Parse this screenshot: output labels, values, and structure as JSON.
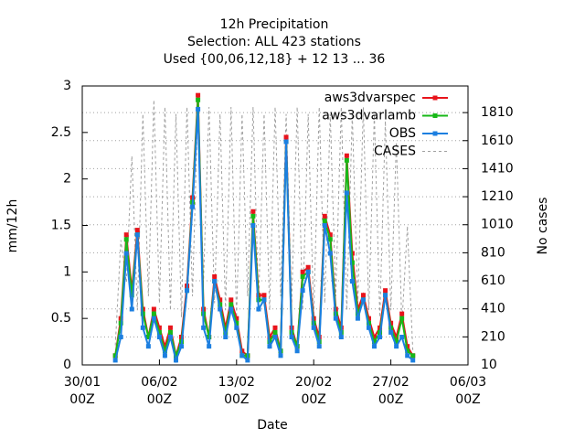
{
  "chart_data": {
    "type": "line",
    "title": [
      "12h Precipitation",
      "Selection: ALL    423 stations",
      "Used {00,06,12,18} + 12 13 ... 36"
    ],
    "x_label": "Date",
    "y_label": "mm/12h",
    "y2_label": "No cases",
    "x": [
      "02/02 00Z",
      "02/02 12Z",
      "03/02 00Z",
      "03/02 12Z",
      "04/02 00Z",
      "04/02 12Z",
      "05/02 00Z",
      "05/02 12Z",
      "06/02 00Z",
      "06/02 12Z",
      "07/02 00Z",
      "07/02 12Z",
      "08/02 00Z",
      "08/02 12Z",
      "09/02 00Z",
      "09/02 12Z",
      "10/02 00Z",
      "10/02 12Z",
      "11/02 00Z",
      "11/02 12Z",
      "12/02 00Z",
      "12/02 12Z",
      "13/02 00Z",
      "13/02 12Z",
      "14/02 00Z",
      "14/02 12Z",
      "15/02 00Z",
      "15/02 12Z",
      "16/02 00Z",
      "16/02 12Z",
      "17/02 00Z",
      "17/02 12Z",
      "18/02 00Z",
      "18/02 12Z",
      "19/02 00Z",
      "19/02 12Z",
      "20/02 00Z",
      "20/02 12Z",
      "21/02 00Z",
      "21/02 12Z",
      "22/02 00Z",
      "22/02 12Z",
      "23/02 00Z",
      "23/02 12Z",
      "24/02 00Z",
      "24/02 12Z",
      "25/02 00Z",
      "25/02 12Z",
      "26/02 00Z",
      "26/02 12Z",
      "27/02 00Z",
      "27/02 12Z",
      "28/02 00Z",
      "28/02 12Z",
      "01/03 00Z"
    ],
    "xlim": [
      "30/01 00Z",
      "06/03 00Z"
    ],
    "xticks": [
      {
        "value": "30/01 00Z",
        "label": "30/01\n00Z"
      },
      {
        "value": "06/02 00Z",
        "label": "06/02\n00Z"
      },
      {
        "value": "13/02 00Z",
        "label": "13/02\n00Z"
      },
      {
        "value": "20/02 00Z",
        "label": "20/02\n00Z"
      },
      {
        "value": "27/02 00Z",
        "label": "27/02\n00Z"
      },
      {
        "value": "06/03 00Z",
        "label": "06/03\n00Z"
      }
    ],
    "ylim": [
      0,
      3
    ],
    "yticks": [
      0,
      0.5,
      1,
      1.5,
      2,
      2.5,
      3
    ],
    "y2lim": [
      10,
      2000
    ],
    "y2ticks": [
      10,
      210,
      410,
      610,
      810,
      1010,
      1210,
      1410,
      1610,
      1810
    ],
    "grid": true,
    "legend": "top_right",
    "series": [
      {
        "name": "CASES",
        "color": "#a0a0a0",
        "dashed": true,
        "axis": "y2",
        "values": [
          150,
          900,
          600,
          1500,
          400,
          1800,
          500,
          1900,
          450,
          1850,
          400,
          1800,
          350,
          1850,
          500,
          1900,
          600,
          1850,
          450,
          1800,
          400,
          1850,
          350,
          1800,
          500,
          1850,
          450,
          1800,
          400,
          1850,
          500,
          1800,
          450,
          1850,
          400,
          1800,
          350,
          1850,
          450,
          1800,
          500,
          1850,
          400,
          1800,
          450,
          1850,
          400,
          1800,
          350,
          1750,
          400,
          1600,
          300,
          1000,
          100
        ]
      },
      {
        "name": "aws3dvarspec",
        "color": "#e8141c",
        "values": [
          0.1,
          0.5,
          1.4,
          0.8,
          1.45,
          0.6,
          0.3,
          0.6,
          0.4,
          0.2,
          0.4,
          0.1,
          0.3,
          0.85,
          1.8,
          2.9,
          0.6,
          0.3,
          0.95,
          0.7,
          0.4,
          0.7,
          0.5,
          0.15,
          0.1,
          1.65,
          0.75,
          0.75,
          0.3,
          0.4,
          0.15,
          2.45,
          0.4,
          0.2,
          1.0,
          1.05,
          0.5,
          0.3,
          1.6,
          1.4,
          0.6,
          0.4,
          2.25,
          1.2,
          0.6,
          0.75,
          0.5,
          0.3,
          0.4,
          0.8,
          0.45,
          0.3,
          0.55,
          0.2,
          0.1
        ]
      },
      {
        "name": "aws3dvarlamb",
        "color": "#18b818",
        "values": [
          0.1,
          0.45,
          1.35,
          0.75,
          1.4,
          0.55,
          0.3,
          0.55,
          0.35,
          0.15,
          0.35,
          0.1,
          0.25,
          0.8,
          1.75,
          2.85,
          0.55,
          0.3,
          0.9,
          0.65,
          0.35,
          0.65,
          0.45,
          0.1,
          0.1,
          1.6,
          0.7,
          0.7,
          0.25,
          0.35,
          0.15,
          2.4,
          0.35,
          0.2,
          0.95,
          1.0,
          0.45,
          0.25,
          1.55,
          1.35,
          0.55,
          0.35,
          2.2,
          1.1,
          0.55,
          0.7,
          0.45,
          0.25,
          0.35,
          0.75,
          0.4,
          0.25,
          0.5,
          0.15,
          0.1
        ]
      },
      {
        "name": "OBS",
        "color": "#1c7fe0",
        "values": [
          0.05,
          0.3,
          1.2,
          0.6,
          1.4,
          0.4,
          0.2,
          0.5,
          0.3,
          0.1,
          0.3,
          0.05,
          0.2,
          0.8,
          1.7,
          2.75,
          0.4,
          0.2,
          0.9,
          0.6,
          0.3,
          0.6,
          0.4,
          0.1,
          0.05,
          1.5,
          0.6,
          0.7,
          0.2,
          0.3,
          0.1,
          2.4,
          0.3,
          0.15,
          0.8,
          1.0,
          0.4,
          0.2,
          1.5,
          1.2,
          0.5,
          0.3,
          1.85,
          0.9,
          0.5,
          0.7,
          0.4,
          0.2,
          0.3,
          0.75,
          0.35,
          0.2,
          0.3,
          0.1,
          0.05
        ]
      }
    ]
  }
}
